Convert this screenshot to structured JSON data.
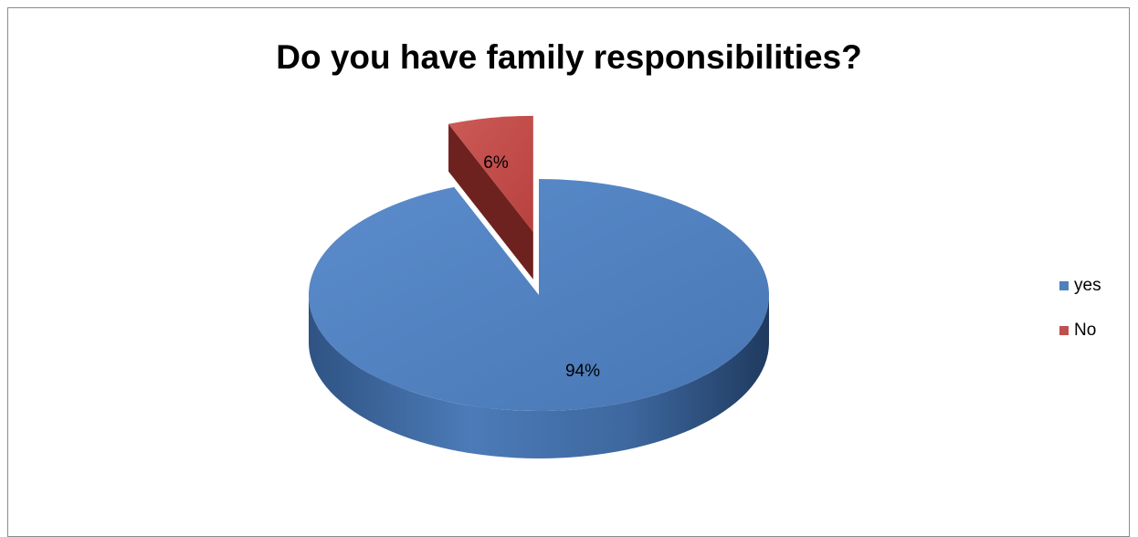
{
  "chart_data": {
    "type": "pie",
    "title": "Do you have family responsibilities?",
    "categories": [
      "yes",
      "No"
    ],
    "values": [
      94,
      6
    ],
    "data_labels": [
      "94%",
      "6%"
    ],
    "colors": [
      "#4f81bd",
      "#c0504d"
    ],
    "exploded": [
      "No"
    ],
    "legend_position": "right",
    "style": "3d"
  }
}
